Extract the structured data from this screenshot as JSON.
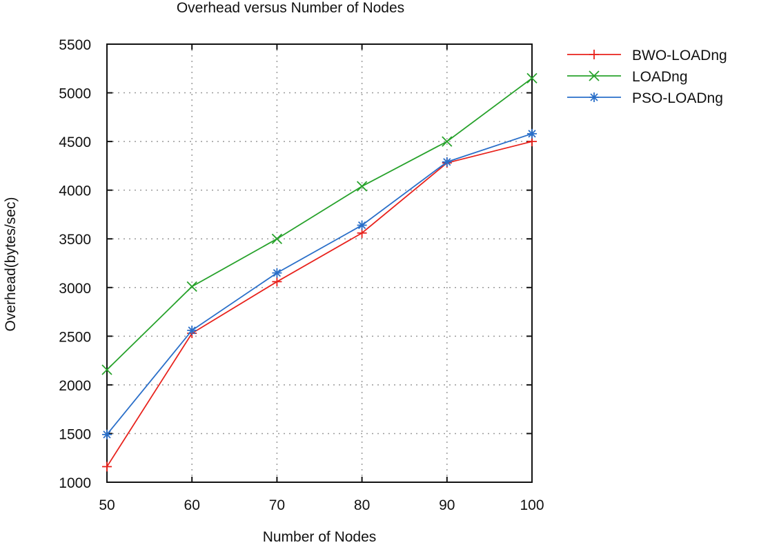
{
  "chart_data": {
    "type": "line",
    "title": "Overhead versus Number of Nodes",
    "xlabel": "Number of Nodes",
    "ylabel": "Overhead(bytes/sec)",
    "x": [
      50,
      60,
      70,
      80,
      90,
      100
    ],
    "xticks": [
      50,
      60,
      70,
      80,
      90,
      100
    ],
    "yticks": [
      1000,
      1500,
      2000,
      2500,
      3000,
      3500,
      4000,
      4500,
      5000,
      5500
    ],
    "xlim": [
      50,
      100
    ],
    "ylim": [
      1000,
      5500
    ],
    "grid": true,
    "legend_position": "outside-right-top",
    "series": [
      {
        "name": "BWO-LOADng",
        "color": "#e8221c",
        "marker": "plus",
        "values": [
          1160,
          2530,
          3060,
          3560,
          4280,
          4500
        ]
      },
      {
        "name": "LOADng",
        "color": "#27a22b",
        "marker": "cross",
        "values": [
          2155,
          3010,
          3500,
          4040,
          4500,
          5150
        ]
      },
      {
        "name": "PSO-LOADng",
        "color": "#2a6fc9",
        "marker": "star",
        "values": [
          1490,
          2560,
          3150,
          3640,
          4290,
          4580
        ]
      }
    ]
  }
}
